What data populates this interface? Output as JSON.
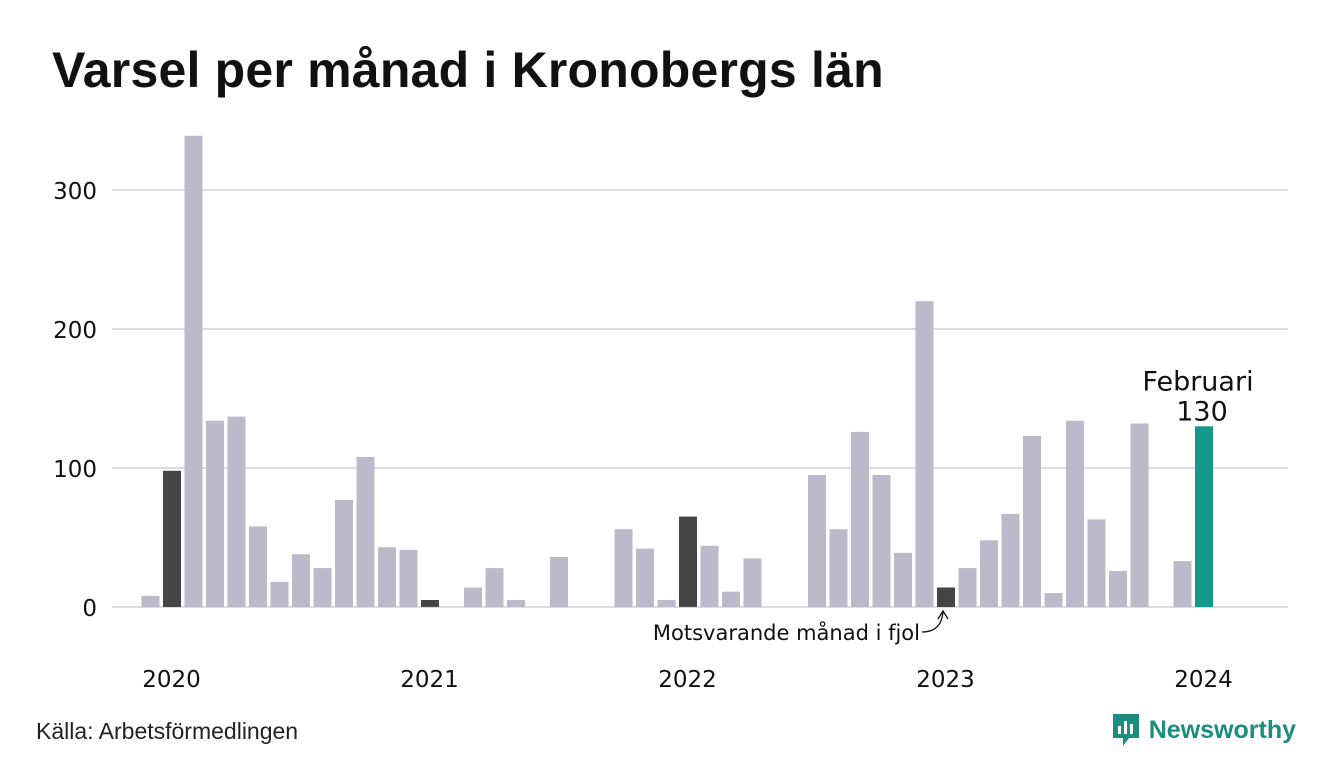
{
  "title": "Varsel per månad i Kronobergs län",
  "source": "Källa: Arbetsförmedlingen",
  "brand": "Newsworthy",
  "colors": {
    "bar": "#bcbaca",
    "highlight_last_year": "#444444",
    "current": "#14998a",
    "grid": "#dddddd",
    "brand": "#1b8e7f"
  },
  "chart_data": {
    "type": "bar",
    "title": "Varsel per månad i Kronobergs län",
    "xlabel": "",
    "ylabel": "",
    "ylim": [
      0,
      345
    ],
    "yticks": [
      0,
      100,
      200,
      300
    ],
    "xticks": [
      "2020",
      "2021",
      "2022",
      "2023",
      "2024"
    ],
    "grid": true,
    "categories": [
      "2020-01",
      "2020-02",
      "2020-03",
      "2020-04",
      "2020-05",
      "2020-06",
      "2020-07",
      "2020-08",
      "2020-09",
      "2020-10",
      "2020-11",
      "2020-12",
      "2021-01",
      "2021-02",
      "2021-03",
      "2021-04",
      "2021-05",
      "2021-06",
      "2021-07",
      "2021-08",
      "2021-09",
      "2021-10",
      "2021-11",
      "2021-12",
      "2022-01",
      "2022-02",
      "2022-03",
      "2022-04",
      "2022-05",
      "2022-06",
      "2022-07",
      "2022-08",
      "2022-09",
      "2022-10",
      "2022-11",
      "2022-12",
      "2023-01",
      "2023-02",
      "2023-03",
      "2023-04",
      "2023-05",
      "2023-06",
      "2023-07",
      "2023-08",
      "2023-09",
      "2023-10",
      "2023-11",
      "2023-12",
      "2024-01",
      "2024-02"
    ],
    "values": [
      8,
      98,
      339,
      134,
      137,
      58,
      18,
      38,
      28,
      77,
      108,
      43,
      41,
      5,
      0,
      14,
      28,
      5,
      0,
      36,
      0,
      0,
      56,
      42,
      5,
      65,
      44,
      11,
      35,
      0,
      0,
      95,
      56,
      126,
      95,
      39,
      220,
      14,
      28,
      48,
      67,
      123,
      10,
      134,
      63,
      26,
      132,
      0,
      33,
      130
    ],
    "highlight_same_month_last_year": [
      "2020-02",
      "2021-02",
      "2022-02",
      "2023-02"
    ],
    "current": "2024-02",
    "annotations": {
      "current_month_label": "Februari",
      "current_value_label": "130",
      "last_year_note": "Motsvarande månad i fjol"
    }
  }
}
